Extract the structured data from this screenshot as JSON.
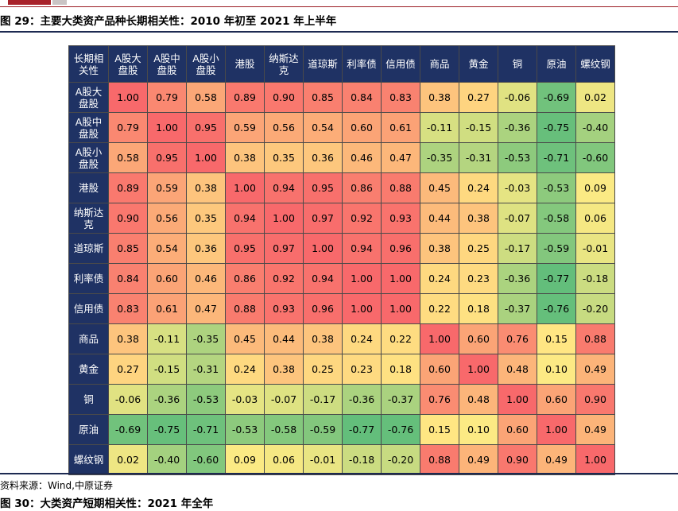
{
  "header": {
    "figure_title": "图 29：主要大类资产品种长期相关性：2010 年初至 2021 年上半年",
    "source": "资料来源：Wind,中原证券",
    "next_figure_title": "图 30：大类资产短期相关性：2021 年全年"
  },
  "colors": {
    "header_bg": "#1f3264",
    "header_text": "#ffffff",
    "scale_high": "#f8696b",
    "scale_mid": "#ffeb84",
    "scale_low": "#63be7b",
    "brand": "#a8222a"
  },
  "chart_data": {
    "type": "heatmap",
    "title": "主要大类资产品种长期相关性：2010 年初至 2021 年上半年",
    "corner_label": "长期相关性",
    "corner_label_lines": [
      "长期相",
      "关性"
    ],
    "labels": [
      "A股大盘股",
      "A股中盘股",
      "A股小盘股",
      "港股",
      "纳斯达克",
      "道琼斯",
      "利率债",
      "信用债",
      "商品",
      "黄金",
      "铜",
      "原油",
      "螺纹钢"
    ],
    "col_label_lines": [
      [
        "A股大",
        "盘股"
      ],
      [
        "A股中",
        "盘股"
      ],
      [
        "A股小",
        "盘股"
      ],
      [
        "港股"
      ],
      [
        "纳斯达",
        "克"
      ],
      [
        "道琼斯"
      ],
      [
        "利率债"
      ],
      [
        "信用债"
      ],
      [
        "商品"
      ],
      [
        "黄金"
      ],
      [
        "铜"
      ],
      [
        "原油"
      ],
      [
        "螺纹钢"
      ]
    ],
    "row_label_lines": [
      [
        "A股大",
        "盘股"
      ],
      [
        "A股中",
        "盘股"
      ],
      [
        "A股小",
        "盘股"
      ],
      [
        "港股"
      ],
      [
        "纳斯达",
        "克"
      ],
      [
        "道琼斯"
      ],
      [
        "利率债"
      ],
      [
        "信用债"
      ],
      [
        "商品"
      ],
      [
        "黄金"
      ],
      [
        "铜"
      ],
      [
        "原油"
      ],
      [
        "螺纹钢"
      ]
    ],
    "values": [
      [
        1.0,
        0.79,
        0.58,
        0.89,
        0.9,
        0.85,
        0.84,
        0.83,
        0.38,
        0.27,
        -0.06,
        -0.69,
        0.02
      ],
      [
        0.79,
        1.0,
        0.95,
        0.59,
        0.56,
        0.54,
        0.6,
        0.61,
        -0.11,
        -0.15,
        -0.36,
        -0.75,
        -0.4
      ],
      [
        0.58,
        0.95,
        1.0,
        0.38,
        0.35,
        0.36,
        0.46,
        0.47,
        -0.35,
        -0.31,
        -0.53,
        -0.71,
        -0.6
      ],
      [
        0.89,
        0.59,
        0.38,
        1.0,
        0.94,
        0.95,
        0.86,
        0.88,
        0.45,
        0.24,
        -0.03,
        -0.53,
        0.09
      ],
      [
        0.9,
        0.56,
        0.35,
        0.94,
        1.0,
        0.97,
        0.92,
        0.93,
        0.44,
        0.38,
        -0.07,
        -0.58,
        0.06
      ],
      [
        0.85,
        0.54,
        0.36,
        0.95,
        0.97,
        1.0,
        0.94,
        0.96,
        0.38,
        0.25,
        -0.17,
        -0.59,
        -0.01
      ],
      [
        0.84,
        0.6,
        0.46,
        0.86,
        0.92,
        0.94,
        1.0,
        1.0,
        0.24,
        0.23,
        -0.36,
        -0.77,
        -0.18
      ],
      [
        0.83,
        0.61,
        0.47,
        0.88,
        0.93,
        0.96,
        1.0,
        1.0,
        0.22,
        0.18,
        -0.37,
        -0.76,
        -0.2
      ],
      [
        0.38,
        -0.11,
        -0.35,
        0.45,
        0.44,
        0.38,
        0.24,
        0.22,
        1.0,
        0.6,
        0.76,
        0.15,
        0.88
      ],
      [
        0.27,
        -0.15,
        -0.31,
        0.24,
        0.38,
        0.25,
        0.23,
        0.18,
        0.6,
        1.0,
        0.48,
        0.1,
        0.49
      ],
      [
        -0.06,
        -0.36,
        -0.53,
        -0.03,
        -0.07,
        -0.17,
        -0.36,
        -0.37,
        0.76,
        0.48,
        1.0,
        0.6,
        0.9
      ],
      [
        -0.69,
        -0.75,
        -0.71,
        -0.53,
        -0.58,
        -0.59,
        -0.77,
        -0.76,
        0.15,
        0.1,
        0.6,
        1.0,
        0.49
      ],
      [
        0.02,
        -0.4,
        -0.6,
        0.09,
        0.06,
        -0.01,
        -0.18,
        -0.2,
        0.88,
        0.49,
        0.9,
        0.49,
        1.0
      ]
    ]
  }
}
